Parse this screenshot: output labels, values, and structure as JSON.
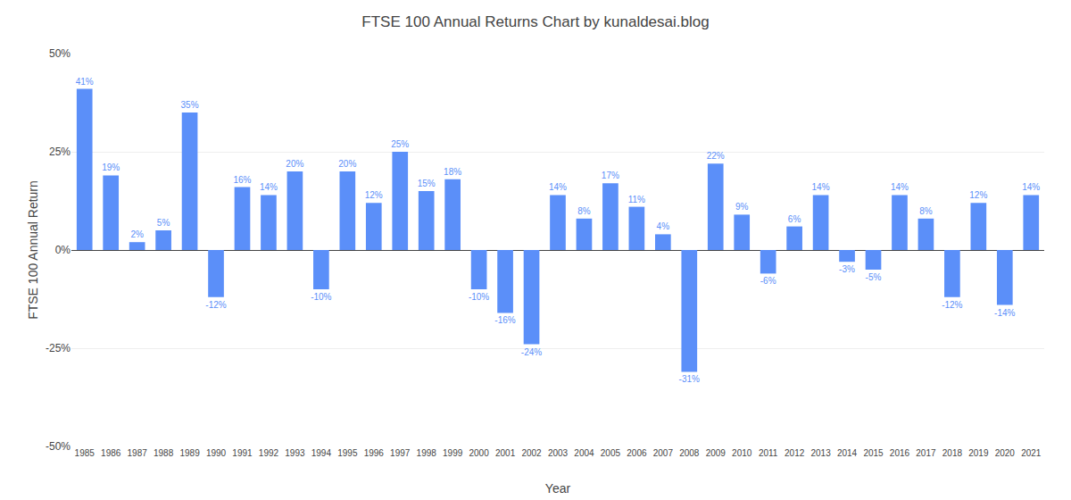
{
  "chart_data": {
    "type": "bar",
    "title": "FTSE 100 Annual Returns Chart by kunaldesai.blog",
    "x_label": "Year",
    "y_label": "FTSE 100 Annual Return",
    "categories": [
      "1985",
      "1986",
      "1987",
      "1988",
      "1989",
      "1990",
      "1991",
      "1992",
      "1993",
      "1994",
      "1995",
      "1996",
      "1997",
      "1998",
      "1999",
      "2000",
      "2001",
      "2002",
      "2003",
      "2004",
      "2005",
      "2006",
      "2007",
      "2008",
      "2009",
      "2010",
      "2011",
      "2012",
      "2013",
      "2014",
      "2015",
      "2016",
      "2017",
      "2018",
      "2019",
      "2020",
      "2021"
    ],
    "values": [
      41,
      19,
      2,
      5,
      35,
      -12,
      16,
      14,
      20,
      -10,
      20,
      12,
      25,
      15,
      18,
      -10,
      -16,
      -24,
      14,
      8,
      17,
      11,
      4,
      -31,
      22,
      9,
      -6,
      6,
      14,
      -3,
      -5,
      14,
      8,
      -12,
      12,
      -14,
      14
    ],
    "value_labels": [
      "41%",
      "19%",
      "2%",
      "5%",
      "35%",
      "-12%",
      "16%",
      "14%",
      "20%",
      "-10%",
      "20%",
      "12%",
      "25%",
      "15%",
      "18%",
      "-10%",
      "-16%",
      "-24%",
      "14%",
      "8%",
      "17%",
      "11%",
      "4%",
      "-31%",
      "22%",
      "9%",
      "-6%",
      "6%",
      "14%",
      "-3%",
      "-5%",
      "14%",
      "8%",
      "-12%",
      "12%",
      "-14%",
      "14%"
    ],
    "data_labels": true,
    "color": "#5b8ff9",
    "ylim": [
      -50,
      50
    ],
    "yticks": [
      {
        "value": -50,
        "label": "-50%"
      },
      {
        "value": -25,
        "label": "-25%"
      },
      {
        "value": 0,
        "label": "0%"
      },
      {
        "value": 25,
        "label": "25%"
      },
      {
        "value": 50,
        "label": "50%"
      }
    ],
    "grid": true
  }
}
